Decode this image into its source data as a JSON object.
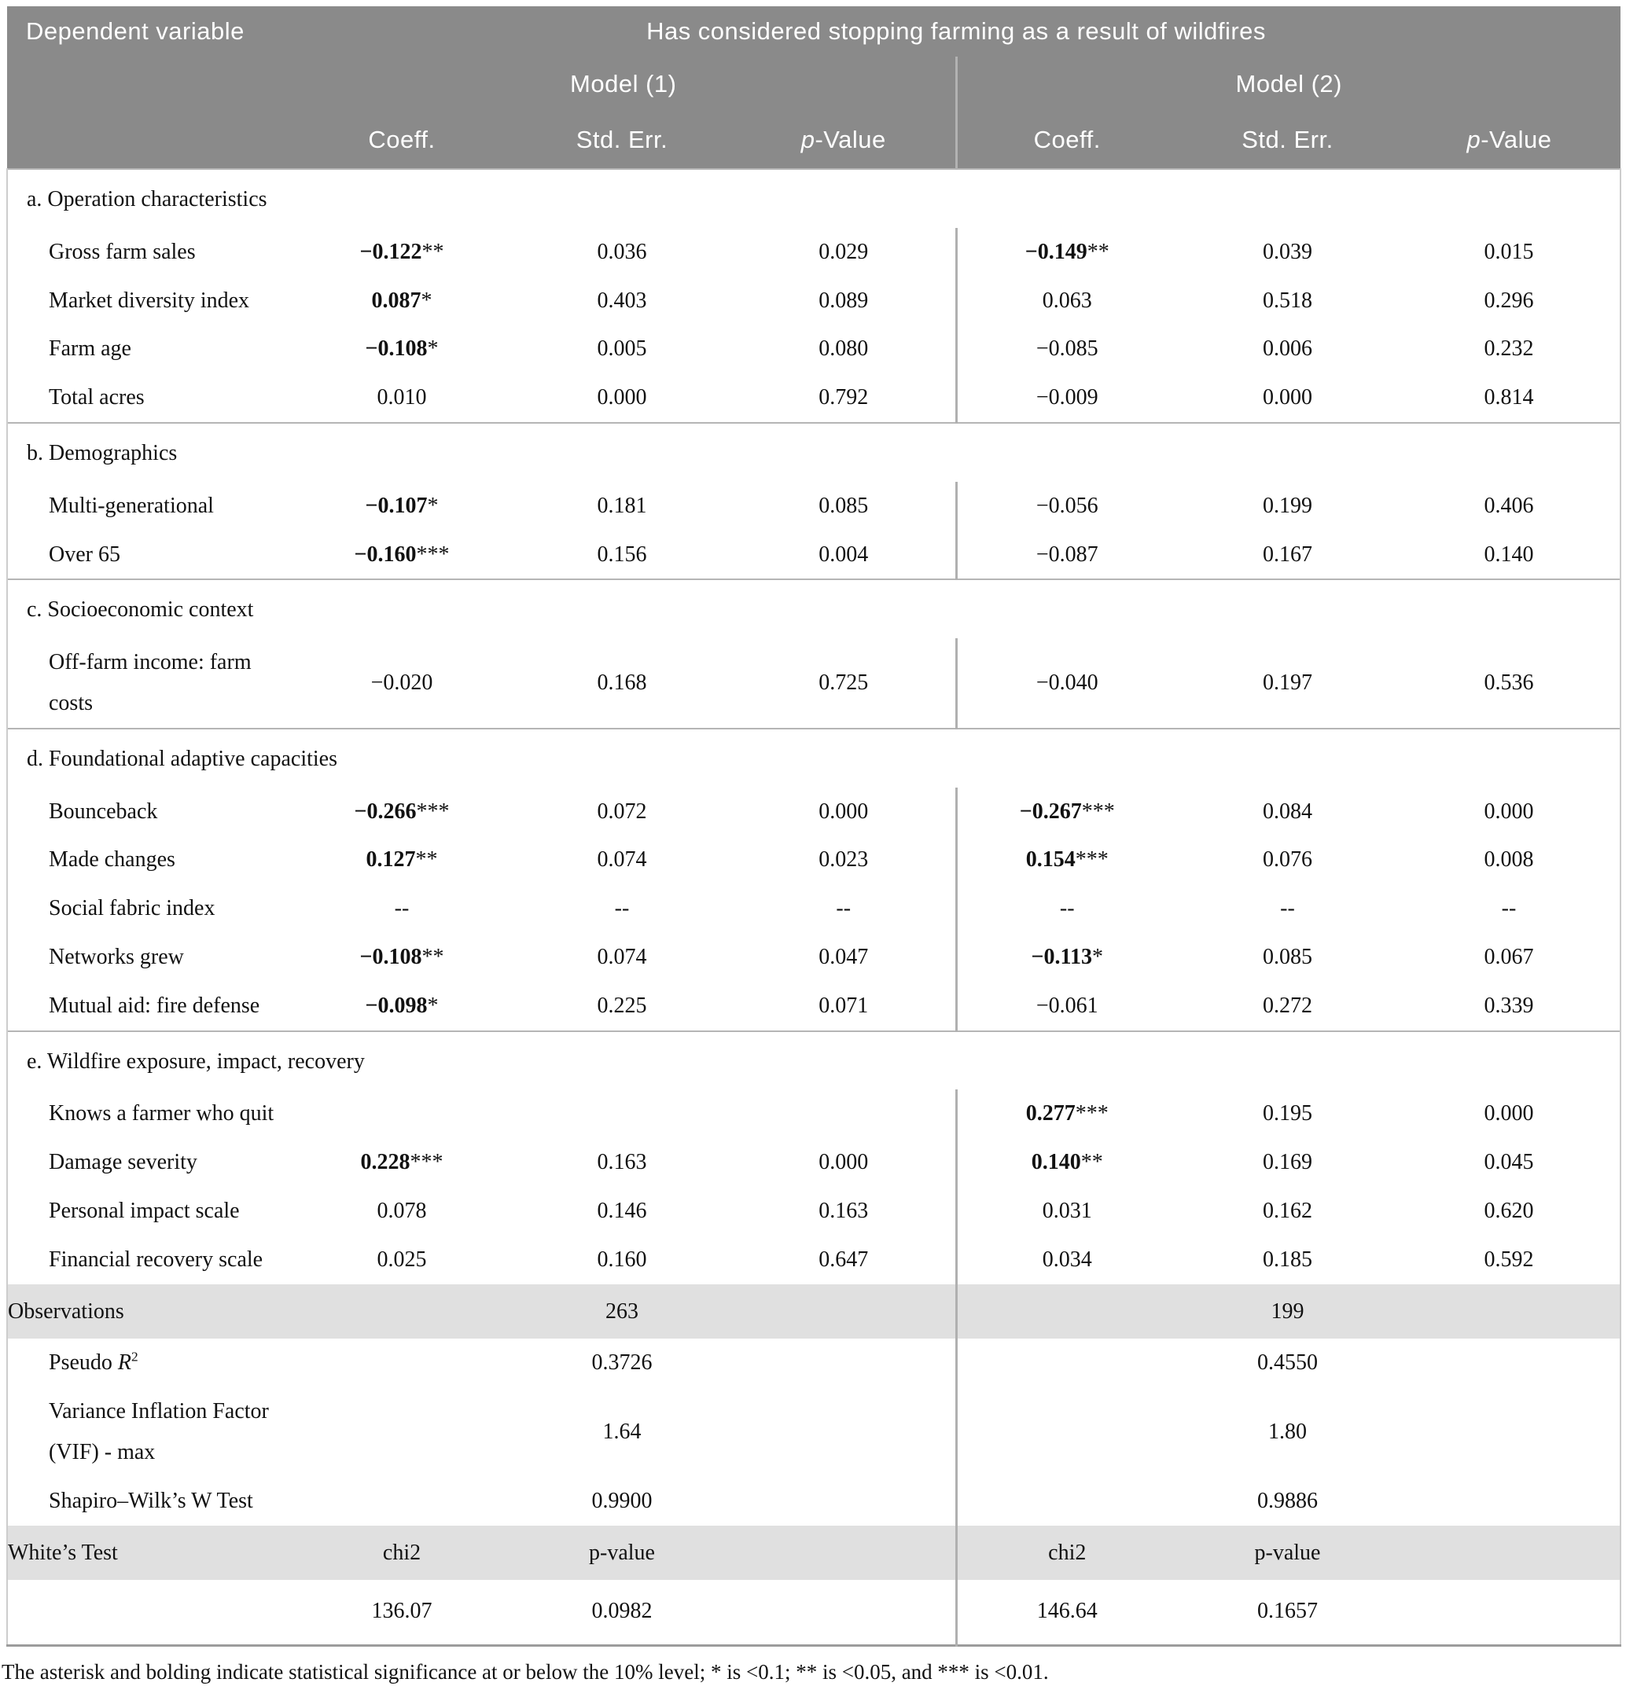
{
  "header": {
    "dependent_variable": "Dependent variable",
    "span_title": "Has considered stopping farming as a result of wildfires",
    "model1": "Model (1)",
    "model2": "Model (2)",
    "coeff": "Coeff.",
    "std_err": "Std. Err.",
    "p_italic": "p",
    "p_rest": "-Value"
  },
  "sections": [
    {
      "title": "a. Operation characteristics",
      "rows": [
        {
          "label": "Gross farm sales",
          "m1_coeff": "−0.122",
          "m1_stars": "**",
          "m1_se": "0.036",
          "m1_p": "0.029",
          "m2_coeff": "−0.149",
          "m2_stars": "**",
          "m2_se": "0.039",
          "m2_p": "0.015"
        },
        {
          "label": "Market diversity index",
          "m1_coeff": "0.087",
          "m1_stars": "*",
          "m1_se": "0.403",
          "m1_p": "0.089",
          "m2_coeff": "0.063",
          "m2_stars": "",
          "m2_se": "0.518",
          "m2_p": "0.296"
        },
        {
          "label": "Farm age",
          "m1_coeff": "−0.108",
          "m1_stars": "*",
          "m1_se": "0.005",
          "m1_p": "0.080",
          "m2_coeff": "−0.085",
          "m2_stars": "",
          "m2_se": "0.006",
          "m2_p": "0.232"
        },
        {
          "label": "Total acres",
          "m1_coeff": "0.010",
          "m1_stars": "",
          "m1_se": "0.000",
          "m1_p": "0.792",
          "m2_coeff": "−0.009",
          "m2_stars": "",
          "m2_se": "0.000",
          "m2_p": "0.814"
        }
      ]
    },
    {
      "title": "b. Demographics",
      "rows": [
        {
          "label": "Multi-generational",
          "m1_coeff": "−0.107",
          "m1_stars": "*",
          "m1_se": "0.181",
          "m1_p": "0.085",
          "m2_coeff": "−0.056",
          "m2_stars": "",
          "m2_se": "0.199",
          "m2_p": "0.406"
        },
        {
          "label": "Over 65",
          "m1_coeff": "−0.160",
          "m1_stars": "***",
          "m1_se": "0.156",
          "m1_p": "0.004",
          "m2_coeff": "−0.087",
          "m2_stars": "",
          "m2_se": "0.167",
          "m2_p": "0.140"
        }
      ]
    },
    {
      "title": "c. Socioeconomic context",
      "rows": [
        {
          "label": "Off-farm income: farm costs",
          "m1_coeff": "−0.020",
          "m1_stars": "",
          "m1_se": "0.168",
          "m1_p": "0.725",
          "m2_coeff": "−0.040",
          "m2_stars": "",
          "m2_se": "0.197",
          "m2_p": "0.536"
        }
      ]
    },
    {
      "title": "d. Foundational adaptive capacities",
      "rows": [
        {
          "label": "Bounceback",
          "m1_coeff": "−0.266",
          "m1_stars": "***",
          "m1_se": "0.072",
          "m1_p": "0.000",
          "m2_coeff": "−0.267",
          "m2_stars": "***",
          "m2_se": "0.084",
          "m2_p": "0.000"
        },
        {
          "label": "Made changes",
          "m1_coeff": "0.127",
          "m1_stars": "**",
          "m1_se": "0.074",
          "m1_p": "0.023",
          "m2_coeff": "0.154",
          "m2_stars": "***",
          "m2_se": "0.076",
          "m2_p": "0.008"
        },
        {
          "label": "Social fabric index",
          "m1_coeff": "--",
          "m1_stars": "",
          "m1_se": "--",
          "m1_p": "--",
          "m2_coeff": "--",
          "m2_stars": "",
          "m2_se": "--",
          "m2_p": "--"
        },
        {
          "label": "Networks grew",
          "m1_coeff": "−0.108",
          "m1_stars": "**",
          "m1_se": "0.074",
          "m1_p": "0.047",
          "m2_coeff": "−0.113",
          "m2_stars": "*",
          "m2_se": "0.085",
          "m2_p": "0.067"
        },
        {
          "label": "Mutual aid: fire defense",
          "m1_coeff": "−0.098",
          "m1_stars": "*",
          "m1_se": "0.225",
          "m1_p": "0.071",
          "m2_coeff": "−0.061",
          "m2_stars": "",
          "m2_se": "0.272",
          "m2_p": "0.339"
        }
      ]
    },
    {
      "title": "e. Wildfire exposure, impact, recovery",
      "rows": [
        {
          "label": "Knows a farmer who quit",
          "m1_coeff": "",
          "m1_stars": "",
          "m1_se": "",
          "m1_p": "",
          "m2_coeff": "0.277",
          "m2_stars": "***",
          "m2_se": "0.195",
          "m2_p": "0.000"
        },
        {
          "label": "Damage severity",
          "m1_coeff": "0.228",
          "m1_stars": "***",
          "m1_se": "0.163",
          "m1_p": "0.000",
          "m2_coeff": "0.140",
          "m2_stars": "**",
          "m2_se": "0.169",
          "m2_p": "0.045"
        },
        {
          "label": "Personal impact scale",
          "m1_coeff": "0.078",
          "m1_stars": "",
          "m1_se": "0.146",
          "m1_p": "0.163",
          "m2_coeff": "0.031",
          "m2_stars": "",
          "m2_se": "0.162",
          "m2_p": "0.620"
        },
        {
          "label": "Financial recovery scale",
          "m1_coeff": "0.025",
          "m1_stars": "",
          "m1_se": "0.160",
          "m1_p": "0.647",
          "m2_coeff": "0.034",
          "m2_stars": "",
          "m2_se": "0.185",
          "m2_p": "0.592"
        }
      ]
    }
  ],
  "stats": {
    "observations": {
      "label": "Observations",
      "m1": "263",
      "m2": "199"
    },
    "pseudo_r2": {
      "label_prefix": "Pseudo ",
      "label_r": "R",
      "label_sup": "2",
      "m1": "0.3726",
      "m2": "0.4550"
    },
    "vif": {
      "label": "Variance Inflation Factor (VIF) - max",
      "m1": "1.64",
      "m2": "1.80"
    },
    "shapiro": {
      "label": "Shapiro–Wilk’s W Test",
      "m1": "0.9900",
      "m2": "0.9886"
    },
    "whites_test": {
      "label": "White’s Test",
      "chi2_label": "chi2",
      "p_label": "p-value",
      "m1_chi2": "136.07",
      "m1_p": "0.0982",
      "m2_chi2": "146.64",
      "m2_p": "0.1657"
    }
  },
  "footnote": "The asterisk and bolding indicate statistical significance at or below the 10% level; * is <0.1; ** is <0.05, and *** is <0.01.",
  "colors": {
    "header_bg": "#8a8a8a",
    "gray_row_bg": "#e0e0e0",
    "divider": "#b0b0b0",
    "section_line": "#b5b5b5",
    "bottom_rule": "#9c9c9c"
  }
}
